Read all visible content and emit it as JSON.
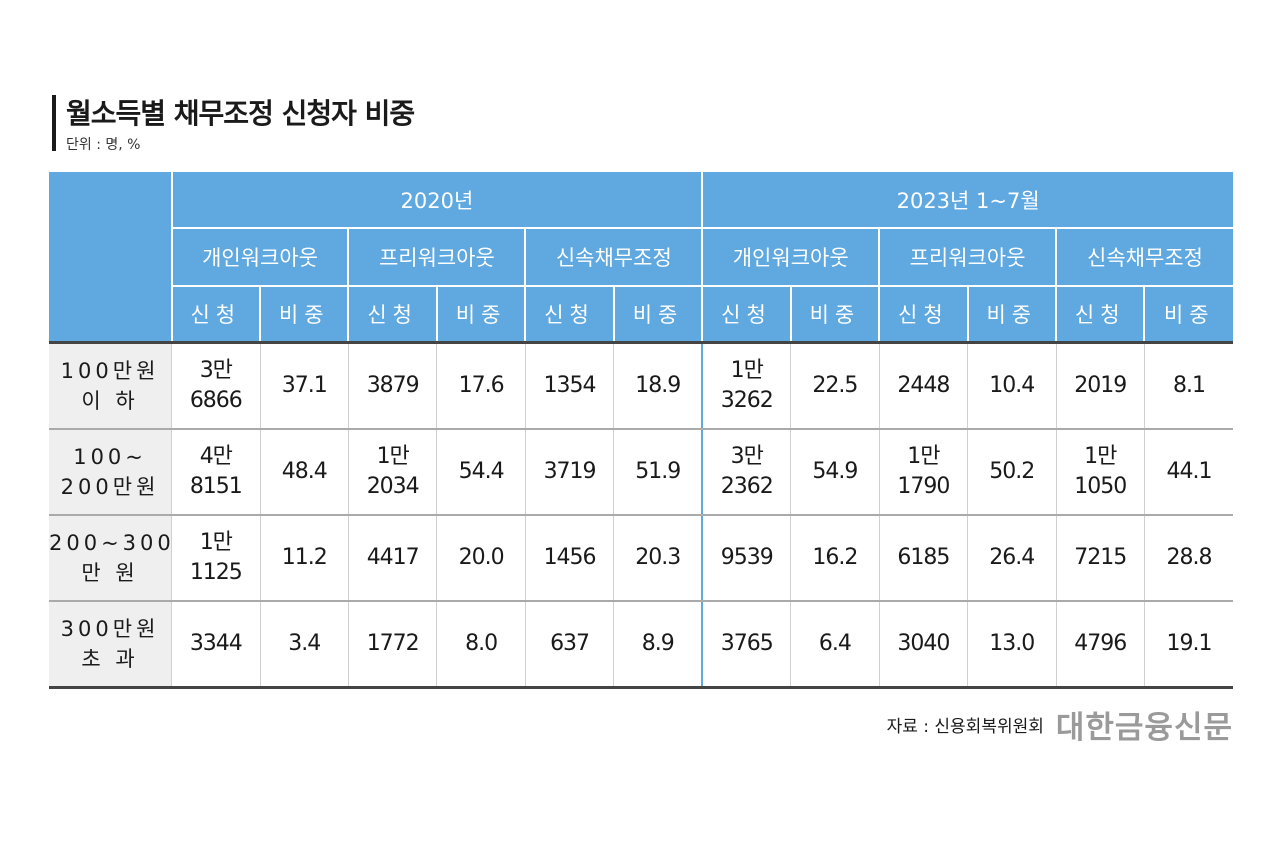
{
  "header": {
    "title": "월소득별 채무조정 신청자 비중",
    "unit": "단위 : 명, %"
  },
  "chart_data": {
    "type": "table",
    "title": "월소득별 채무조정 신청자 비중",
    "unit": "단위 : 명, %",
    "periods": [
      "2020년",
      "2023년 1~7월"
    ],
    "programs": [
      "개인워크아웃",
      "프리워크아웃",
      "신속채무조정"
    ],
    "metrics": [
      "신청",
      "비중"
    ],
    "rows": [
      {
        "label": [
          "100만원",
          "이  하"
        ],
        "cells": [
          [
            "3만",
            "6866"
          ],
          [
            "37.1"
          ],
          [
            "3879"
          ],
          [
            "17.6"
          ],
          [
            "1354"
          ],
          [
            "18.9"
          ],
          [
            "1만",
            "3262"
          ],
          [
            "22.5"
          ],
          [
            "2448"
          ],
          [
            "10.4"
          ],
          [
            "2019"
          ],
          [
            "8.1"
          ]
        ]
      },
      {
        "label": [
          "100~",
          "200만원"
        ],
        "cells": [
          [
            "4만",
            "8151"
          ],
          [
            "48.4"
          ],
          [
            "1만",
            "2034"
          ],
          [
            "54.4"
          ],
          [
            "3719"
          ],
          [
            "51.9"
          ],
          [
            "3만",
            "2362"
          ],
          [
            "54.9"
          ],
          [
            "1만",
            "1790"
          ],
          [
            "50.2"
          ],
          [
            "1만",
            "1050"
          ],
          [
            "44.1"
          ]
        ]
      },
      {
        "label": [
          "200~300",
          "만  원"
        ],
        "cells": [
          [
            "1만",
            "1125"
          ],
          [
            "11.2"
          ],
          [
            "4417"
          ],
          [
            "20.0"
          ],
          [
            "1456"
          ],
          [
            "20.3"
          ],
          [
            "9539"
          ],
          [
            "16.2"
          ],
          [
            "6185"
          ],
          [
            "26.4"
          ],
          [
            "7215"
          ],
          [
            "28.8"
          ]
        ]
      },
      {
        "label": [
          "300만원",
          "초  과"
        ],
        "cells": [
          [
            "3344"
          ],
          [
            "3.4"
          ],
          [
            "1772"
          ],
          [
            "8.0"
          ],
          [
            "637"
          ],
          [
            "8.9"
          ],
          [
            "3765"
          ],
          [
            "6.4"
          ],
          [
            "3040"
          ],
          [
            "13.0"
          ],
          [
            "4796"
          ],
          [
            "19.1"
          ]
        ]
      }
    ]
  },
  "footer": {
    "source": "자료 : 신용회복위원회",
    "logo": "대한금융신문"
  },
  "colors": {
    "header_bg": "#5fa8e0",
    "header_text": "#ffffff",
    "row_label_bg": "#efefef",
    "logo": "#9a9a9a"
  }
}
